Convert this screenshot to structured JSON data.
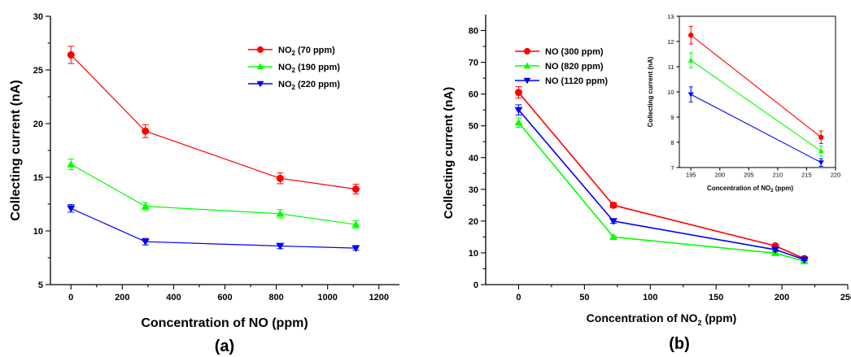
{
  "chart_data": [
    {
      "type": "line",
      "panel_label": "(a)",
      "xlabel": "Concentration of NO (ppm)",
      "ylabel": "Collecting current (nA)",
      "xlim": [
        -80,
        1280
      ],
      "ylim": [
        5,
        30
      ],
      "xticks": [
        0,
        200,
        400,
        600,
        800,
        1000,
        1200
      ],
      "yticks": [
        5,
        10,
        15,
        20,
        25,
        30
      ],
      "x": [
        0,
        290,
        815,
        1110
      ],
      "legend_position": "top-right",
      "series": [
        {
          "name": "NO₂ (70 ppm)",
          "label_main": "NO",
          "label_sub": "2",
          "label_rest": " (70 ppm)",
          "color": "#ff0000",
          "marker": "circle",
          "values": [
            26.4,
            19.3,
            14.9,
            13.9
          ],
          "errors": [
            0.8,
            0.6,
            0.5,
            0.45
          ]
        },
        {
          "name": "NO₂ (190 ppm)",
          "label_main": "NO",
          "label_sub": "2",
          "label_rest": " (190 ppm)",
          "color": "#00ff00",
          "marker": "triangle-up",
          "values": [
            16.2,
            12.3,
            11.6,
            10.6
          ],
          "errors": [
            0.5,
            0.35,
            0.4,
            0.35
          ]
        },
        {
          "name": "NO₂ (220 ppm)",
          "label_main": "NO",
          "label_sub": "2",
          "label_rest": " (220 ppm)",
          "color": "#0000ff",
          "marker": "triangle-down",
          "values": [
            12.1,
            9.0,
            8.6,
            8.4
          ],
          "errors": [
            0.35,
            0.3,
            0.25,
            0.2
          ]
        }
      ]
    },
    {
      "type": "line",
      "panel_label": "(b)",
      "xlabel_main": "Concentration of NO",
      "xlabel_sub": "2",
      "xlabel_rest": " (ppm)",
      "ylabel": "Collecting current (nA)",
      "xlim": [
        -25,
        250
      ],
      "ylim": [
        0,
        85
      ],
      "xticks": [
        0,
        50,
        100,
        150,
        200,
        250
      ],
      "yticks": [
        0,
        10,
        20,
        30,
        40,
        50,
        60,
        70,
        80
      ],
      "x": [
        0,
        72,
        195,
        217
      ],
      "legend_position": "top-left",
      "series": [
        {
          "name": "NO (300 ppm)",
          "color": "#ff0000",
          "marker": "circle",
          "values": [
            60.5,
            25.0,
            12.2,
            8.2
          ],
          "errors": [
            1.8,
            0.8,
            0.5,
            0.4
          ]
        },
        {
          "name": "NO (820 ppm)",
          "color": "#00ff00",
          "marker": "triangle-up",
          "values": [
            51.0,
            15.0,
            9.9,
            7.4
          ],
          "errors": [
            1.5,
            0.5,
            0.4,
            0.3
          ]
        },
        {
          "name": "NO (1120 ppm)",
          "color": "#0000ff",
          "marker": "triangle-down",
          "values": [
            55.0,
            20.0,
            11.0,
            7.9
          ],
          "errors": [
            1.6,
            0.7,
            0.5,
            0.3
          ]
        }
      ],
      "inset": {
        "type": "line",
        "xlabel_main": "Concentration of NO",
        "xlabel_sub": "2",
        "xlabel_rest": " (ppm)",
        "ylabel": "Collecting current (nA)",
        "xlim": [
          193,
          220
        ],
        "ylim": [
          7,
          13
        ],
        "xticks": [
          195,
          200,
          205,
          210,
          215,
          220
        ],
        "yticks": [
          7,
          8,
          9,
          10,
          11,
          12,
          13
        ],
        "x": [
          195,
          217.5
        ],
        "series": [
          {
            "color": "#ff0000",
            "marker": "circle",
            "values": [
              12.25,
              8.2
            ],
            "errors": [
              0.35,
              0.25
            ]
          },
          {
            "color": "#00ff00",
            "marker": "triangle-up",
            "values": [
              11.25,
              7.65
            ],
            "errors": [
              0.3,
              0.2
            ]
          },
          {
            "color": "#0000ff",
            "marker": "triangle-down",
            "values": [
              9.9,
              7.2
            ],
            "errors": [
              0.3,
              0.15
            ]
          }
        ]
      }
    }
  ]
}
